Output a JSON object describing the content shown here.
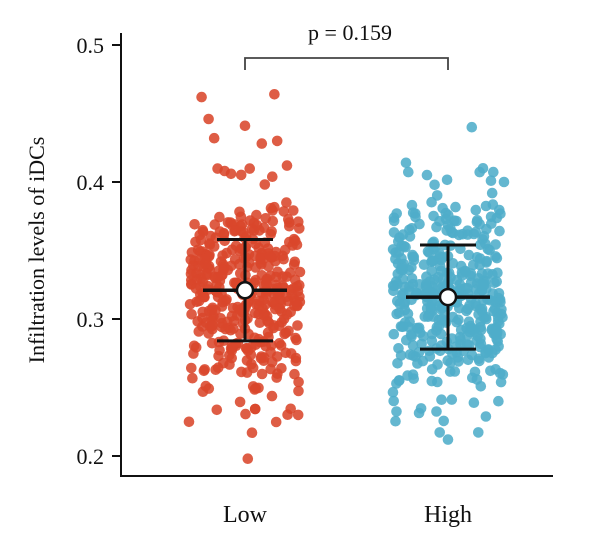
{
  "chart_data": {
    "type": "scatter",
    "subtype": "jitter-strip-with-mean-sd",
    "ylabel": "Infiltration levels of iDCs",
    "ylim": [
      0.19,
      0.515
    ],
    "yticks": [
      "0.2",
      "0.3",
      "0.4",
      "0.5"
    ],
    "grid": false,
    "categories": [
      "Low",
      "High"
    ],
    "annotation": {
      "text": "p = 0.159",
      "between": [
        "Low",
        "High"
      ]
    },
    "series": [
      {
        "category": "Low",
        "color": "#d9472b",
        "mean": 0.321,
        "sd_low": 0.284,
        "sd_high": 0.358,
        "outliers": [
          {
            "x": -0.31,
            "y": 0.462
          },
          {
            "x": 0.21,
            "y": 0.464
          },
          {
            "x": -0.26,
            "y": 0.446
          },
          {
            "x": 0.0,
            "y": 0.441
          },
          {
            "x": 0.12,
            "y": 0.428
          },
          {
            "x": -0.22,
            "y": 0.432
          },
          {
            "x": 0.23,
            "y": 0.43
          },
          {
            "x": -0.4,
            "y": 0.225
          },
          {
            "x": 0.38,
            "y": 0.23
          },
          {
            "x": 0.05,
            "y": 0.217
          },
          {
            "x": 0.02,
            "y": 0.198
          },
          {
            "x": -0.28,
            "y": 0.251
          },
          {
            "x": 0.3,
            "y": 0.412
          },
          {
            "x": -0.1,
            "y": 0.406
          }
        ],
        "n_points": 400
      },
      {
        "category": "High",
        "color": "#4fadc9",
        "mean": 0.316,
        "sd_low": 0.278,
        "sd_high": 0.354,
        "outliers": [
          {
            "x": 0.17,
            "y": 0.44
          },
          {
            "x": -0.3,
            "y": 0.414
          },
          {
            "x": 0.4,
            "y": 0.4
          },
          {
            "x": 0.0,
            "y": 0.212
          },
          {
            "x": 0.25,
            "y": 0.41
          },
          {
            "x": -0.15,
            "y": 0.405
          },
          {
            "x": -0.35,
            "y": 0.255
          },
          {
            "x": 0.36,
            "y": 0.24
          }
        ],
        "n_points": 400
      }
    ]
  }
}
